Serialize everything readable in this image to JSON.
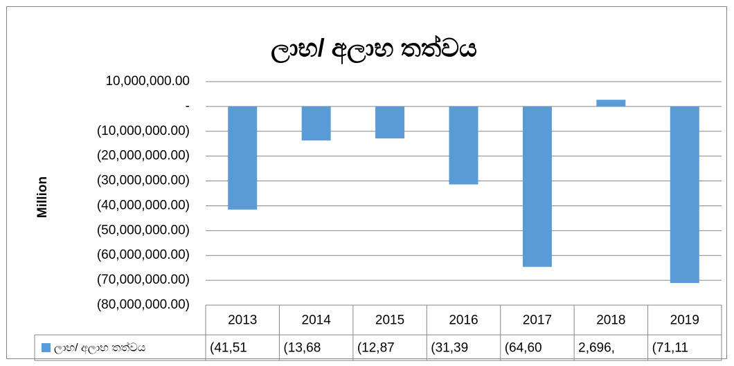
{
  "chart_data": {
    "type": "bar",
    "title": "ලාභ/ අලාභ තත්වය",
    "y_label": "Million",
    "categories": [
      "2013",
      "2014",
      "2015",
      "2016",
      "2017",
      "2018",
      "2019"
    ],
    "series": [
      {
        "name": "ලාභ/ අලාභ තත්වය",
        "color": "#5b9bd5",
        "values": [
          -41510000,
          -13680000,
          -12870000,
          -31390000,
          -64600000,
          2696000,
          -71110000
        ],
        "value_labels": [
          "(41,51",
          "(13,68",
          "(12,87",
          "(31,39",
          "(64,60",
          "2,696,",
          "(71,11"
        ]
      }
    ],
    "ylim": [
      -80000000,
      10000000
    ],
    "yticks": [
      {
        "value": 10000000,
        "label": "10,000,000.00"
      },
      {
        "value": 0,
        "label": "-"
      },
      {
        "value": -10000000,
        "label": "(10,000,000.00)"
      },
      {
        "value": -20000000,
        "label": "(20,000,000.00)"
      },
      {
        "value": -30000000,
        "label": "(30,000,000.00)"
      },
      {
        "value": -40000000,
        "label": "(40,000,000.00)"
      },
      {
        "value": -50000000,
        "label": "(50,000,000.00)"
      },
      {
        "value": -60000000,
        "label": "(60,000,000.00)"
      },
      {
        "value": -70000000,
        "label": "(70,000,000.00)"
      },
      {
        "value": -80000000,
        "label": "(80,000,000.00)"
      }
    ],
    "grid": true
  }
}
